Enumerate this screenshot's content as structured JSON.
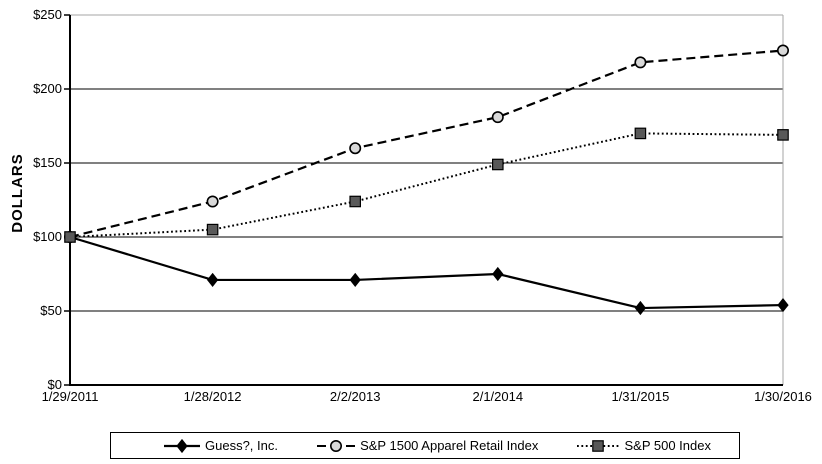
{
  "page": {
    "background": "#ffffff"
  },
  "chart_data": {
    "type": "line",
    "title": "",
    "xlabel": "",
    "ylabel": "DOLLARS",
    "categories": [
      "1/29/2011",
      "1/28/2012",
      "2/2/2013",
      "2/1/2014",
      "1/31/2015",
      "1/30/2016"
    ],
    "y_tick_labels": [
      "$0",
      "$50",
      "$100",
      "$150",
      "$200",
      "$250"
    ],
    "y_tick_values": [
      0,
      50,
      100,
      150,
      200,
      250
    ],
    "ylim": [
      0,
      250
    ],
    "grid": "horizontal",
    "legend_position": "bottom-boxed",
    "axis_color": "#000000",
    "border_color": "#a6a6a6",
    "series": [
      {
        "name": "Guess?, Inc.",
        "line_style": "solid",
        "marker": "diamond",
        "color": "#000000",
        "marker_fill": "#000000",
        "values": [
          100,
          71,
          71,
          75,
          52,
          54
        ]
      },
      {
        "name": "S&P 1500 Apparel Retail Index",
        "line_style": "dashed",
        "marker": "circle",
        "color": "#000000",
        "marker_fill": "#d9d9d9",
        "values": [
          100,
          124,
          160,
          181,
          218,
          226
        ]
      },
      {
        "name": "S&P 500 Index",
        "line_style": "dotted",
        "marker": "square",
        "color": "#000000",
        "marker_fill": "#595959",
        "values": [
          100,
          105,
          124,
          149,
          170,
          169
        ]
      }
    ]
  }
}
